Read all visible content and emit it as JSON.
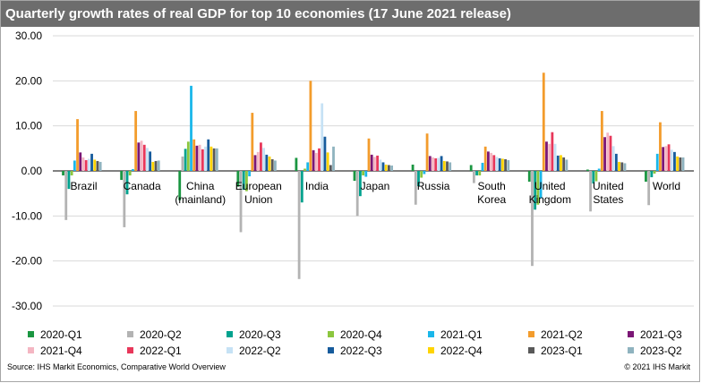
{
  "chart_data": {
    "type": "bar",
    "title": "Quarterly growth rates of real GDP for top 10 economies (17 June 2021 release)",
    "xlabel": "",
    "ylabel": "",
    "ylim": [
      -30,
      30
    ],
    "yticks": [
      "30.00",
      "20.00",
      "10.00",
      "0.00",
      "-10.00",
      "-20.00",
      "-30.00"
    ],
    "grid": true,
    "legend_position": "bottom",
    "categories": [
      [
        "Brazil"
      ],
      [
        "Canada"
      ],
      [
        "China",
        "(mainland)"
      ],
      [
        "European",
        "Union"
      ],
      [
        "India"
      ],
      [
        "Japan"
      ],
      [
        "Russia"
      ],
      [
        "South",
        "Korea"
      ],
      [
        "United",
        "Kingdom"
      ],
      [
        "United",
        "States"
      ],
      [
        "World"
      ]
    ],
    "series": [
      {
        "name": "2020-Q1",
        "color": "#1a9641",
        "values": [
          -1.0,
          -2.0,
          -6.5,
          -3.5,
          2.9,
          -2.2,
          1.4,
          1.3,
          -2.4,
          0.3,
          -2.4
        ]
      },
      {
        "name": "2020-Q2",
        "color": "#b3b3b3",
        "values": [
          -10.9,
          -12.5,
          3.2,
          -13.6,
          -24.0,
          -10.0,
          -7.5,
          -2.7,
          -21.1,
          -9.0,
          -7.6
        ]
      },
      {
        "name": "2020-Q3",
        "color": "#00a28e",
        "values": [
          -4.0,
          -5.2,
          4.9,
          -4.2,
          -7.0,
          -5.6,
          -3.4,
          -1.0,
          -8.6,
          -2.8,
          -1.4
        ]
      },
      {
        "name": "2020-Q4",
        "color": "#8cc63f",
        "values": [
          -1.0,
          -1.0,
          6.5,
          -4.5,
          0.5,
          -1.0,
          -1.5,
          -1.0,
          -7.5,
          -2.3,
          -0.6
        ]
      },
      {
        "name": "2021-Q1",
        "color": "#1ab7ea",
        "values": [
          2.3,
          0.4,
          18.9,
          -1.2,
          1.9,
          -1.3,
          -0.7,
          1.8,
          -6.1,
          0.5,
          3.8
        ]
      },
      {
        "name": "2021-Q2",
        "color": "#f39c2c",
        "values": [
          11.5,
          13.3,
          7.0,
          12.9,
          20.0,
          7.2,
          8.3,
          5.4,
          21.8,
          13.3,
          10.8
        ]
      },
      {
        "name": "2021-Q3",
        "color": "#7b1675",
        "values": [
          4.1,
          6.3,
          5.6,
          3.5,
          4.6,
          3.6,
          3.3,
          4.3,
          6.5,
          7.5,
          5.3
        ]
      },
      {
        "name": "2021-Q4",
        "color": "#f4b6c2",
        "values": [
          3.0,
          6.7,
          5.8,
          4.2,
          4.0,
          3.1,
          3.0,
          4.0,
          6.0,
          8.5,
          5.5
        ]
      },
      {
        "name": "2022-Q1",
        "color": "#e8375a",
        "values": [
          2.4,
          5.8,
          4.8,
          6.3,
          5.0,
          3.4,
          2.8,
          3.5,
          8.6,
          7.8,
          5.9
        ]
      },
      {
        "name": "2022-Q2",
        "color": "#c6e2f5",
        "values": [
          2.7,
          5.1,
          5.4,
          5.1,
          15.0,
          2.5,
          2.9,
          3.1,
          6.0,
          5.5,
          4.7
        ]
      },
      {
        "name": "2022-Q3",
        "color": "#165b9c",
        "values": [
          3.8,
          4.3,
          7.0,
          3.6,
          7.6,
          1.9,
          3.3,
          2.8,
          3.4,
          3.8,
          4.2
        ]
      },
      {
        "name": "2022-Q4",
        "color": "#ffd400",
        "values": [
          2.5,
          2.0,
          5.4,
          3.2,
          4.1,
          1.4,
          2.2,
          2.7,
          3.5,
          2.0,
          3.2
        ]
      },
      {
        "name": "2023-Q1",
        "color": "#595959",
        "values": [
          2.2,
          2.2,
          5.0,
          2.6,
          1.3,
          1.3,
          2.1,
          2.6,
          3.0,
          1.9,
          3.0
        ]
      },
      {
        "name": "2023-Q2",
        "color": "#8fb3bf",
        "values": [
          2.0,
          2.3,
          5.0,
          2.3,
          5.4,
          1.2,
          1.9,
          2.4,
          2.5,
          1.7,
          3.0
        ]
      }
    ]
  },
  "footer": {
    "source": "Source: IHS Markit Economics,  Comparative World Overview",
    "copyright": "© 2021 IHS Markit"
  }
}
